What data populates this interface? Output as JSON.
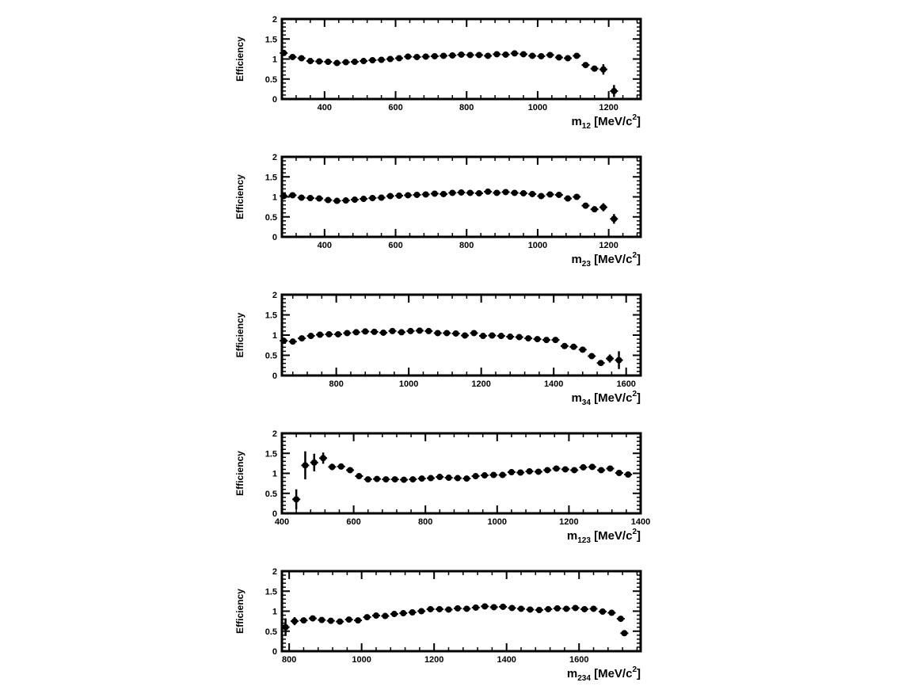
{
  "chart_data": [
    {
      "type": "scatter",
      "xlabel": "m",
      "xlabel_sub": "12",
      "xlabel_units": "[MeV/c",
      "xlabel_sup": "2",
      "xlabel_end": "]",
      "ylabel": "Efficiency",
      "xlim": [
        280,
        1290
      ],
      "ylim": [
        0,
        2
      ],
      "xticks": [
        400,
        600,
        800,
        1000,
        1200
      ],
      "xtick_labels": [
        "400",
        "600",
        "800",
        "1000",
        "1200"
      ],
      "yticks": [
        0,
        0.5,
        1,
        1.5,
        2
      ],
      "ytick_labels": [
        "0",
        "0.5",
        "1",
        "1.5",
        "2"
      ],
      "series": [
        {
          "x": [
            285,
            310,
            335,
            360,
            385,
            410,
            435,
            460,
            485,
            510,
            535,
            560,
            585,
            610,
            635,
            660,
            685,
            710,
            735,
            760,
            785,
            810,
            835,
            860,
            885,
            910,
            935,
            960,
            985,
            1010,
            1035,
            1060,
            1085,
            1110,
            1135,
            1160,
            1185,
            1215
          ],
          "y": [
            1.15,
            1.05,
            1.02,
            0.95,
            0.94,
            0.93,
            0.9,
            0.92,
            0.93,
            0.95,
            0.97,
            0.98,
            1.0,
            1.02,
            1.06,
            1.05,
            1.06,
            1.07,
            1.08,
            1.09,
            1.11,
            1.1,
            1.1,
            1.08,
            1.12,
            1.11,
            1.14,
            1.12,
            1.08,
            1.07,
            1.1,
            1.04,
            1.02,
            1.08,
            0.85,
            0.76,
            0.74,
            0.2
          ],
          "yerr": [
            0.03,
            0.03,
            0.03,
            0.03,
            0.03,
            0.03,
            0.03,
            0.03,
            0.03,
            0.03,
            0.03,
            0.03,
            0.03,
            0.03,
            0.03,
            0.03,
            0.03,
            0.03,
            0.03,
            0.03,
            0.03,
            0.03,
            0.03,
            0.03,
            0.03,
            0.03,
            0.03,
            0.03,
            0.03,
            0.03,
            0.03,
            0.03,
            0.03,
            0.04,
            0.05,
            0.06,
            0.13,
            0.15
          ]
        }
      ]
    },
    {
      "type": "scatter",
      "xlabel": "m",
      "xlabel_sub": "23",
      "xlabel_units": "[MeV/c",
      "xlabel_sup": "2",
      "xlabel_end": "]",
      "ylabel": "Efficiency",
      "xlim": [
        280,
        1290
      ],
      "ylim": [
        0,
        2
      ],
      "xticks": [
        400,
        600,
        800,
        1000,
        1200
      ],
      "xtick_labels": [
        "400",
        "600",
        "800",
        "1000",
        "1200"
      ],
      "yticks": [
        0,
        0.5,
        1,
        1.5,
        2
      ],
      "ytick_labels": [
        "0",
        "0.5",
        "1",
        "1.5",
        "2"
      ],
      "series": [
        {
          "x": [
            285,
            310,
            335,
            360,
            385,
            410,
            435,
            460,
            485,
            510,
            535,
            560,
            585,
            610,
            635,
            660,
            685,
            710,
            735,
            760,
            785,
            810,
            835,
            860,
            885,
            910,
            935,
            960,
            985,
            1010,
            1035,
            1060,
            1085,
            1110,
            1135,
            1160,
            1185,
            1215
          ],
          "y": [
            1.02,
            1.04,
            0.98,
            0.97,
            0.96,
            0.92,
            0.9,
            0.91,
            0.93,
            0.95,
            0.97,
            0.98,
            1.02,
            1.03,
            1.04,
            1.05,
            1.06,
            1.08,
            1.07,
            1.1,
            1.11,
            1.1,
            1.09,
            1.13,
            1.1,
            1.12,
            1.1,
            1.09,
            1.07,
            1.02,
            1.06,
            1.05,
            0.96,
            1.0,
            0.78,
            0.69,
            0.74,
            0.45
          ],
          "yerr": [
            0.03,
            0.03,
            0.03,
            0.03,
            0.03,
            0.03,
            0.03,
            0.03,
            0.03,
            0.03,
            0.03,
            0.03,
            0.03,
            0.03,
            0.03,
            0.03,
            0.03,
            0.03,
            0.03,
            0.03,
            0.03,
            0.03,
            0.03,
            0.03,
            0.03,
            0.03,
            0.03,
            0.03,
            0.03,
            0.03,
            0.03,
            0.03,
            0.04,
            0.04,
            0.05,
            0.06,
            0.1,
            0.12
          ]
        }
      ]
    },
    {
      "type": "scatter",
      "xlabel": "m",
      "xlabel_sub": "34",
      "xlabel_units": "[MeV/c",
      "xlabel_sup": "2",
      "xlabel_end": "]",
      "ylabel": "Efficiency",
      "xlim": [
        650,
        1640
      ],
      "ylim": [
        0,
        2
      ],
      "xticks": [
        800,
        1000,
        1200,
        1400,
        1600
      ],
      "xtick_labels": [
        "800",
        "1000",
        "1200",
        "1400",
        "1600"
      ],
      "yticks": [
        0,
        0.5,
        1,
        1.5,
        2
      ],
      "ytick_labels": [
        "0",
        "0.5",
        "1",
        "1.5",
        "2"
      ],
      "series": [
        {
          "x": [
            655,
            680,
            705,
            730,
            755,
            780,
            805,
            830,
            855,
            880,
            905,
            930,
            955,
            980,
            1005,
            1030,
            1055,
            1080,
            1105,
            1130,
            1155,
            1180,
            1205,
            1230,
            1255,
            1280,
            1305,
            1330,
            1355,
            1380,
            1405,
            1430,
            1455,
            1480,
            1505,
            1530,
            1555,
            1580
          ],
          "y": [
            0.86,
            0.84,
            0.92,
            0.98,
            1.01,
            1.02,
            1.02,
            1.05,
            1.07,
            1.09,
            1.08,
            1.06,
            1.1,
            1.07,
            1.1,
            1.11,
            1.1,
            1.05,
            1.05,
            1.04,
            0.99,
            1.05,
            0.98,
            0.99,
            0.98,
            0.96,
            0.95,
            0.92,
            0.9,
            0.88,
            0.88,
            0.73,
            0.71,
            0.64,
            0.48,
            0.31,
            0.42,
            0.38
          ],
          "yerr": [
            0.03,
            0.03,
            0.03,
            0.03,
            0.03,
            0.03,
            0.03,
            0.03,
            0.03,
            0.03,
            0.03,
            0.03,
            0.03,
            0.03,
            0.03,
            0.03,
            0.03,
            0.03,
            0.03,
            0.03,
            0.03,
            0.03,
            0.03,
            0.03,
            0.03,
            0.03,
            0.03,
            0.03,
            0.03,
            0.03,
            0.03,
            0.04,
            0.04,
            0.05,
            0.06,
            0.07,
            0.1,
            0.22
          ]
        }
      ]
    },
    {
      "type": "scatter",
      "xlabel": "m",
      "xlabel_sub": "123",
      "xlabel_units": "[MeV/c",
      "xlabel_sup": "2",
      "xlabel_end": "]",
      "ylabel": "Efficiency",
      "xlim": [
        400,
        1400
      ],
      "ylim": [
        0,
        2
      ],
      "xticks": [
        400,
        600,
        800,
        1000,
        1200,
        1400
      ],
      "xtick_labels": [
        "400",
        "600",
        "800",
        "1000",
        "1200",
        "1400"
      ],
      "yticks": [
        0,
        0.5,
        1,
        1.5,
        2
      ],
      "ytick_labels": [
        "0",
        "0.5",
        "1",
        "1.5",
        "2"
      ],
      "series": [
        {
          "x": [
            440,
            465,
            490,
            515,
            540,
            565,
            590,
            615,
            640,
            665,
            690,
            715,
            740,
            765,
            790,
            815,
            840,
            865,
            890,
            915,
            940,
            965,
            990,
            1015,
            1040,
            1065,
            1090,
            1115,
            1140,
            1165,
            1190,
            1215,
            1240,
            1265,
            1290,
            1315,
            1340,
            1365
          ],
          "y": [
            0.35,
            1.2,
            1.27,
            1.38,
            1.16,
            1.17,
            1.08,
            0.93,
            0.85,
            0.86,
            0.85,
            0.85,
            0.84,
            0.85,
            0.87,
            0.88,
            0.91,
            0.89,
            0.88,
            0.87,
            0.93,
            0.95,
            0.96,
            0.96,
            1.03,
            1.02,
            1.05,
            1.04,
            1.08,
            1.12,
            1.1,
            1.08,
            1.15,
            1.16,
            1.08,
            1.12,
            1.01,
            0.97
          ],
          "yerr": [
            0.25,
            0.35,
            0.22,
            0.14,
            0.08,
            0.07,
            0.05,
            0.04,
            0.03,
            0.03,
            0.03,
            0.03,
            0.03,
            0.03,
            0.03,
            0.03,
            0.03,
            0.03,
            0.03,
            0.03,
            0.03,
            0.03,
            0.03,
            0.03,
            0.03,
            0.03,
            0.03,
            0.03,
            0.03,
            0.03,
            0.03,
            0.03,
            0.03,
            0.03,
            0.03,
            0.03,
            0.03,
            0.03
          ]
        }
      ]
    },
    {
      "type": "scatter",
      "xlabel": "m",
      "xlabel_sub": "234",
      "xlabel_units": "[MeV/c",
      "xlabel_sup": "2",
      "xlabel_end": "]",
      "ylabel": "Efficiency",
      "xlim": [
        780,
        1770
      ],
      "ylim": [
        0,
        2
      ],
      "xticks": [
        800,
        1000,
        1200,
        1400,
        1600
      ],
      "xtick_labels": [
        "800",
        "1000",
        "1200",
        "1400",
        "1600"
      ],
      "yticks": [
        0,
        0.5,
        1,
        1.5,
        2
      ],
      "ytick_labels": [
        "0",
        "0.5",
        "1",
        "1.5",
        "2"
      ],
      "series": [
        {
          "x": [
            790,
            815,
            840,
            865,
            890,
            915,
            940,
            965,
            990,
            1015,
            1040,
            1065,
            1090,
            1115,
            1140,
            1165,
            1190,
            1215,
            1240,
            1265,
            1290,
            1315,
            1340,
            1365,
            1390,
            1415,
            1440,
            1465,
            1490,
            1515,
            1540,
            1565,
            1590,
            1615,
            1640,
            1665,
            1690,
            1715
          ],
          "y": [
            0.6,
            0.75,
            0.77,
            0.82,
            0.78,
            0.76,
            0.74,
            0.79,
            0.77,
            0.85,
            0.89,
            0.88,
            0.93,
            0.95,
            0.97,
            1.0,
            1.05,
            1.05,
            1.04,
            1.07,
            1.06,
            1.09,
            1.12,
            1.1,
            1.11,
            1.08,
            1.06,
            1.04,
            1.03,
            1.05,
            1.07,
            1.06,
            1.08,
            1.05,
            1.06,
            0.99,
            0.96,
            0.81
          ],
          "yerr": [
            0.22,
            0.1,
            0.05,
            0.04,
            0.03,
            0.03,
            0.03,
            0.03,
            0.03,
            0.03,
            0.03,
            0.03,
            0.03,
            0.03,
            0.03,
            0.03,
            0.03,
            0.03,
            0.03,
            0.03,
            0.03,
            0.03,
            0.03,
            0.03,
            0.03,
            0.03,
            0.03,
            0.03,
            0.03,
            0.03,
            0.03,
            0.03,
            0.03,
            0.03,
            0.03,
            0.03,
            0.04,
            0.05
          ]
        }
      ]
    }
  ],
  "extra_points": [
    {
      "panel": 4,
      "x": 1725,
      "y": 0.45,
      "yerr": 0.03
    }
  ]
}
